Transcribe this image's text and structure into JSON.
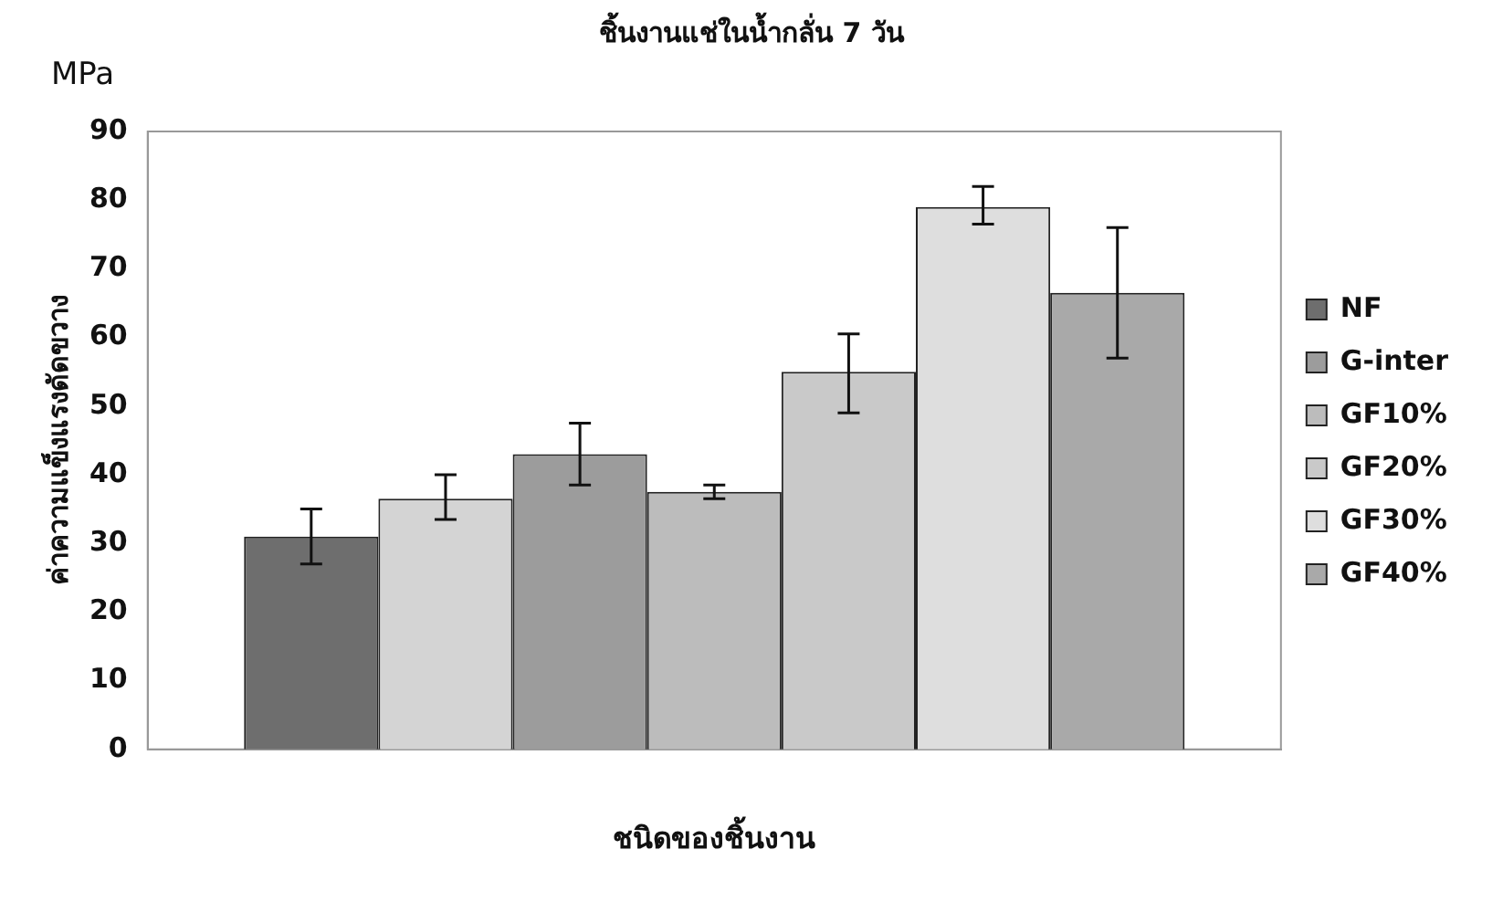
{
  "chart_data": {
    "type": "bar",
    "title": "ชิ้นงานแช่ในน้ำกลั่น 7 วัน",
    "xlabel": "ชนิดของชิ้นงาน",
    "ylabel": "ค่าความแข็งแรงดัดขวาง",
    "annotations": [
      "MPa"
    ],
    "categories": [
      null
    ],
    "series": [
      {
        "name": "NF",
        "color": "#6e6e6e",
        "values": [
          31
        ],
        "errors": [
          [
            27,
            35
          ]
        ]
      },
      {
        "color": "#d4d4d4",
        "values": [
          36.5
        ],
        "errors": [
          [
            33.5,
            40
          ]
        ]
      },
      {
        "name": "G-inter",
        "color": "#9c9c9c",
        "values": [
          43
        ],
        "errors": [
          [
            38.5,
            47.5
          ]
        ]
      },
      {
        "name": "GF10%",
        "color": "#bcbcbc",
        "values": [
          37.5
        ],
        "errors": [
          [
            36.5,
            38.5
          ]
        ]
      },
      {
        "name": "GF20%",
        "color": "#c9c9c9",
        "values": [
          55
        ],
        "errors": [
          [
            49,
            60.5
          ]
        ]
      },
      {
        "name": "GF30%",
        "color": "#dedede",
        "values": [
          79
        ],
        "errors": [
          [
            76.5,
            82
          ]
        ]
      },
      {
        "name": "GF40%",
        "color": "#a9a9a9",
        "values": [
          66.5
        ],
        "errors": [
          [
            57,
            76
          ]
        ]
      }
    ],
    "ylim": [
      0,
      90
    ],
    "yticks": [
      0,
      10,
      20,
      30,
      40,
      50,
      60,
      70,
      80,
      90
    ],
    "grid": false,
    "legend": "right"
  }
}
